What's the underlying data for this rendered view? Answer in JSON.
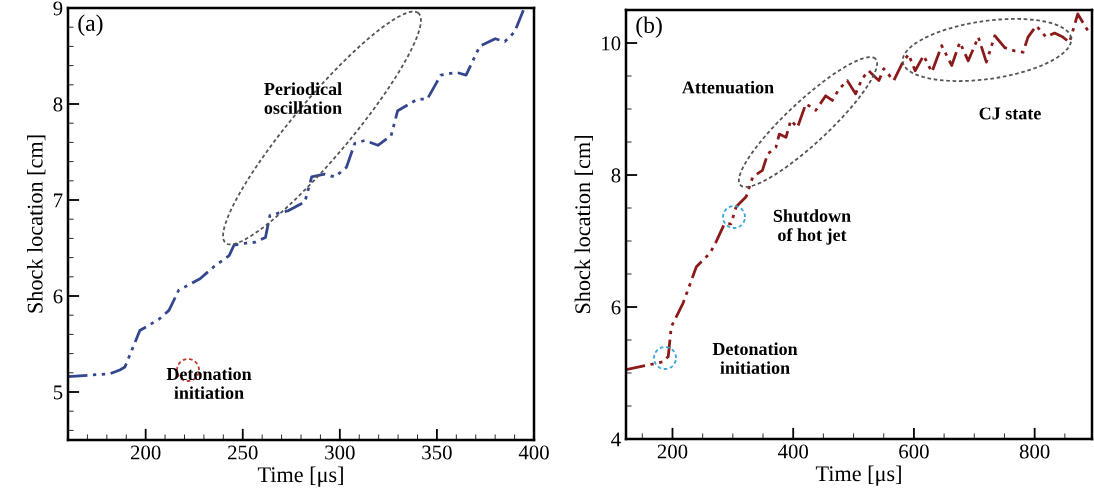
{
  "chart_data": [
    {
      "type": "line",
      "xlabel": "Time [μs]",
      "ylabel": "Shock location [cm]",
      "xlim": [
        160,
        400
      ],
      "ylim": [
        4.5,
        9
      ],
      "xticks": [
        200,
        250,
        300,
        350,
        400
      ],
      "yticks": [
        5,
        6,
        7,
        8,
        9
      ],
      "line_style": "dashed",
      "grid": false,
      "legend": false,
      "annotations": [
        "(a)",
        "Periodical\noscillation",
        "Detonation\ninitiation"
      ],
      "series": [
        {
          "color": "#34468f",
          "x": [
            160,
            181.6,
            186.7,
            189.3,
            197,
            207,
            212,
            217,
            228,
            236,
            243,
            245.5,
            251.5,
            256.5,
            261.7,
            264,
            273.6,
            282,
            285.5,
            292,
            297.4,
            303.4,
            307.7,
            312.8,
            319.6,
            326.4,
            329.8,
            340,
            345,
            352,
            360,
            365,
            372,
            380,
            385,
            390,
            395
          ],
          "values": [
            5.16,
            5.19,
            5.23,
            5.26,
            5.64,
            5.76,
            5.85,
            6.06,
            6.18,
            6.32,
            6.42,
            6.53,
            6.55,
            6.56,
            6.61,
            6.84,
            6.89,
            6.98,
            7.24,
            7.27,
            7.24,
            7.34,
            7.59,
            7.62,
            7.57,
            7.67,
            7.93,
            8.05,
            8.05,
            8.3,
            8.33,
            8.3,
            8.6,
            8.68,
            8.65,
            8.75,
            9.0
          ]
        }
      ]
    },
    {
      "type": "line",
      "xlabel": "Time [μs]",
      "ylabel": "Shock location [cm]",
      "xlim": [
        123,
        895
      ],
      "ylim": [
        4,
        10.5
      ],
      "xticks": [
        200,
        400,
        600,
        800
      ],
      "yticks": [
        4,
        6,
        8,
        10
      ],
      "line_style": "dashed",
      "grid": false,
      "legend": false,
      "annotations": [
        "(b)",
        "Attenuation",
        "Shutdown\nof hot jet",
        "Detonation\ninitiation",
        "CJ state"
      ],
      "series": [
        {
          "color": "#8b1a1a",
          "x": [
            123,
            184.6,
            193,
            198,
            217.6,
            239.6,
            261.5,
            269.8,
            286,
            297,
            305.5,
            322,
            333,
            349,
            357.7,
            371.4,
            377,
            388,
            396,
            407,
            421,
            437.4,
            453.8,
            464.8,
            475.8,
            489.6,
            503.3,
            514.3,
            525,
            541.8,
            550,
            566.5,
            580,
            591,
            602,
            616,
            629.7,
            646,
            662.6,
            676,
            690,
            706.6,
            720,
            734,
            750.5,
            767,
            780.8,
            789,
            802.7,
            819,
            833,
            846.7,
            857.7,
            871.4,
            887.9
          ],
          "values": [
            5.05,
            5.17,
            5.25,
            5.7,
            6.06,
            6.61,
            6.81,
            6.94,
            7.26,
            7.26,
            7.52,
            7.67,
            7.97,
            8.07,
            8.32,
            8.42,
            8.62,
            8.57,
            8.83,
            8.72,
            9.08,
            8.98,
            9.2,
            9.13,
            9.3,
            9.43,
            9.23,
            9.46,
            9.58,
            9.43,
            9.61,
            9.43,
            9.68,
            9.83,
            9.58,
            9.81,
            9.56,
            9.96,
            9.66,
            10.01,
            9.73,
            10.09,
            9.71,
            10.11,
            9.93,
            9.88,
            9.86,
            10.09,
            10.26,
            10.09,
            10.15,
            10.09,
            10.01,
            10.44,
            10.19
          ]
        }
      ]
    }
  ]
}
